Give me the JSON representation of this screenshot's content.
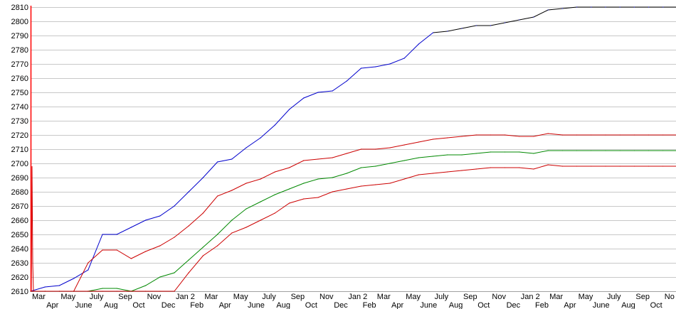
{
  "chart_data": {
    "type": "line",
    "title": "",
    "xlabel": "",
    "ylabel": "",
    "ylim": [
      2610,
      2810
    ],
    "yticks": [
      2610,
      2620,
      2630,
      2640,
      2650,
      2660,
      2670,
      2680,
      2690,
      2700,
      2710,
      2720,
      2730,
      2740,
      2750,
      2760,
      2770,
      2780,
      2790,
      2800,
      2810
    ],
    "grid": true,
    "legend": "none",
    "categories": [
      "Mar",
      "Apr",
      "May",
      "June",
      "July",
      "Aug",
      "Sep",
      "Oct",
      "Nov",
      "Dec",
      "Jan 2",
      "Feb",
      "Mar",
      "Apr",
      "May",
      "June",
      "July",
      "Aug",
      "Sep",
      "Oct",
      "Nov",
      "Dec",
      "Jan 2",
      "Feb",
      "Mar",
      "Apr",
      "May",
      "June",
      "July",
      "Aug",
      "Sep",
      "Oct",
      "Nov",
      "Dec",
      "Jan 2",
      "Feb",
      "Mar",
      "Apr",
      "May",
      "June",
      "July",
      "Aug",
      "Sep",
      "Oct",
      "No"
    ],
    "series": [
      {
        "color": "#0000cc",
        "values": [
          2610,
          2613,
          2614,
          2619,
          2625,
          2650,
          2650,
          2655,
          2660,
          2663,
          2670,
          2680,
          2690,
          2701,
          2703,
          2711,
          2718,
          2727,
          2738,
          2746,
          2750,
          2751,
          2758,
          2767,
          2768,
          2770,
          2774,
          2784,
          2792,
          2793,
          2795,
          2797,
          2797,
          2799,
          2801,
          2803,
          2808,
          2809,
          2810,
          2810,
          2810,
          2810,
          2810,
          2810,
          2810
        ]
      },
      {
        "color": "#cc0000",
        "values": [
          2610,
          2610,
          2610,
          2610,
          2630,
          2639,
          2639,
          2633,
          2638,
          2642,
          2648,
          2656,
          2665,
          2677,
          2681,
          2686,
          2689,
          2694,
          2697,
          2702,
          2703,
          2704,
          2707,
          2710,
          2710,
          2711,
          2713,
          2715,
          2717,
          2718,
          2719,
          2720,
          2720,
          2720,
          2719,
          2719,
          2721,
          2720,
          2720,
          2720,
          2720,
          2720,
          2720,
          2720,
          2720
        ]
      },
      {
        "color": "#008800",
        "values": [
          2610,
          2610,
          2610,
          2610,
          2610,
          2612,
          2612,
          2610,
          2614,
          2620,
          2623,
          2632,
          2641,
          2650,
          2660,
          2668,
          2673,
          2678,
          2682,
          2686,
          2689,
          2690,
          2693,
          2697,
          2698,
          2700,
          2702,
          2704,
          2705,
          2706,
          2706,
          2707,
          2708,
          2708,
          2708,
          2707,
          2709,
          2709,
          2709,
          2709,
          2709,
          2709,
          2709,
          2709,
          2709
        ]
      },
      {
        "color": "#cc0000",
        "values": [
          2610,
          2610,
          2610,
          2610,
          2610,
          2610,
          2610,
          2610,
          2610,
          2610,
          2610,
          2623,
          2635,
          2642,
          2651,
          2655,
          2660,
          2665,
          2672,
          2675,
          2676,
          2680,
          2682,
          2684,
          2685,
          2686,
          2689,
          2692,
          2693,
          2694,
          2695,
          2696,
          2697,
          2697,
          2697,
          2696,
          2699,
          2698,
          2698,
          2698,
          2698,
          2698,
          2698,
          2698,
          2698
        ]
      }
    ],
    "colors": {
      "grid": "#c8c8c8",
      "axis_left": "#ff0000",
      "tail_of_top_series": "#000000"
    }
  }
}
